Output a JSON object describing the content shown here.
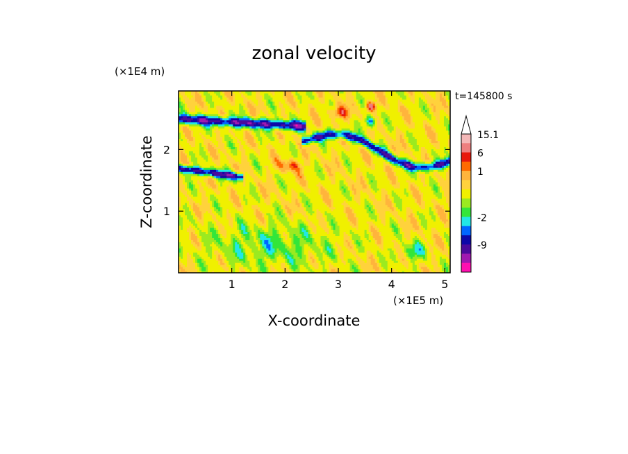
{
  "chart_data": {
    "type": "heatmap",
    "title": "zonal velocity",
    "xlabel": "X-coordinate",
    "ylabel": "Z-coordinate",
    "x_unit": "(×1E5 m)",
    "y_unit": "(×1E4 m)",
    "time_label": "t=145800 s",
    "xlim": [
      0.0,
      5.1
    ],
    "ylim": [
      0.0,
      2.95
    ],
    "x_ticks": [
      1,
      2,
      3,
      4,
      5
    ],
    "y_ticks": [
      1,
      2
    ],
    "colorbar": {
      "labels": [
        {
          "value": 15.1,
          "text": "15.1"
        },
        {
          "value": 6,
          "text": "6"
        },
        {
          "value": 1,
          "text": "1"
        },
        {
          "value": -2,
          "text": "-2"
        },
        {
          "value": -9,
          "text": "-9"
        }
      ],
      "levels": [
        {
          "label": "15.1",
          "color": "#f4b8b8"
        },
        {
          "label": "",
          "color": "#ee7f7f"
        },
        {
          "label": "6",
          "color": "#e8180c"
        },
        {
          "label": "",
          "color": "#ff6a00"
        },
        {
          "label": "1",
          "color": "#ffb43c"
        },
        {
          "label": "",
          "color": "#ffd23c"
        },
        {
          "label": "",
          "color": "#f0f000"
        },
        {
          "label": "",
          "color": "#9bea20"
        },
        {
          "label": "",
          "color": "#33e63a"
        },
        {
          "label": "-2",
          "color": "#22e6e6"
        },
        {
          "label": "",
          "color": "#0066ff"
        },
        {
          "label": "",
          "color": "#0c08a8"
        },
        {
          "label": "-9",
          "color": "#4a0a9c"
        },
        {
          "label": "",
          "color": "#a018b0"
        },
        {
          "label": "",
          "color": "#ff10b0"
        }
      ],
      "extend": "max"
    },
    "grid": false,
    "field_description_features": [
      {
        "type": "band",
        "name": "upper negative jet",
        "x_range": [
          0.2,
          2.3
        ],
        "z_center": 2.5,
        "sign": "negative"
      },
      {
        "type": "band",
        "name": "left low jet",
        "x_range": [
          0.0,
          1.0
        ],
        "z_center": 1.7,
        "sign": "negative"
      },
      {
        "type": "band",
        "name": "right descending jet",
        "x_range": [
          2.4,
          5.1
        ],
        "z_from": 2.15,
        "z_to": 1.95,
        "sign": "negative"
      },
      {
        "type": "spot",
        "name": "positive core",
        "x": 3.6,
        "z": 2.7,
        "sign": "positive"
      }
    ]
  }
}
